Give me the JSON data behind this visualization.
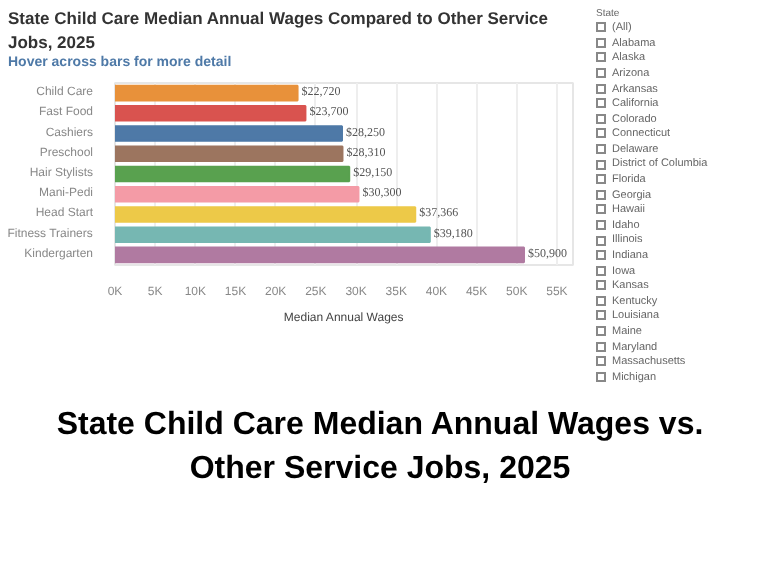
{
  "chart_data": {
    "type": "bar",
    "orientation": "horizontal",
    "title": "State Child Care Median Annual Wages Compared to Other Service Jobs, 2025",
    "subtitle": "Hover across bars for more detail",
    "xlabel": "Median Annual Wages",
    "categories": [
      "Child Care",
      "Fast Food",
      "Cashiers",
      "Preschool",
      "Hair Stylists",
      "Mani-Pedi",
      "Head Start",
      "Fitness Trainers",
      "Kindergarten"
    ],
    "values": [
      22720,
      23700,
      28250,
      28310,
      29150,
      30300,
      37366,
      39180,
      50900
    ],
    "value_labels": [
      "$22,720",
      "$23,700",
      "$28,250",
      "$28,310",
      "$29,150",
      "$30,300",
      "$37,366",
      "$39,180",
      "$50,900"
    ],
    "colors": [
      "#e8913a",
      "#d9534f",
      "#4e79a7",
      "#9c755f",
      "#59a14f",
      "#f49ba6",
      "#edc948",
      "#76b7b2",
      "#b07aa1"
    ],
    "xlim": [
      0,
      57000
    ],
    "xticks": [
      {
        "value": 0,
        "label": "0K"
      },
      {
        "value": 5000,
        "label": "5K"
      },
      {
        "value": 10000,
        "label": "10K"
      },
      {
        "value": 15000,
        "label": "15K"
      },
      {
        "value": 20000,
        "label": "20K"
      },
      {
        "value": 25000,
        "label": "25K"
      },
      {
        "value": 30000,
        "label": "30K"
      },
      {
        "value": 35000,
        "label": "35K"
      },
      {
        "value": 40000,
        "label": "40K"
      },
      {
        "value": 45000,
        "label": "45K"
      },
      {
        "value": 50000,
        "label": "50K"
      },
      {
        "value": 55000,
        "label": "55K"
      }
    ],
    "grid": "x",
    "annotations": [
      "State Child Care Median Annual Wages vs. Other Service Jobs, 2025",
      "State",
      "(All)",
      "Alabama",
      "Alaska",
      "Arizona",
      "Arkansas",
      "California",
      "Colorado",
      "Connecticut",
      "Delaware",
      "District of Columbia",
      "Florida",
      "Georgia",
      "Hawaii",
      "Idaho",
      "Illinois",
      "Indiana",
      "Iowa",
      "Kansas",
      "Kentucky",
      "Louisiana",
      "Maine",
      "Maryland",
      "Massachusetts",
      "Michigan"
    ]
  }
}
